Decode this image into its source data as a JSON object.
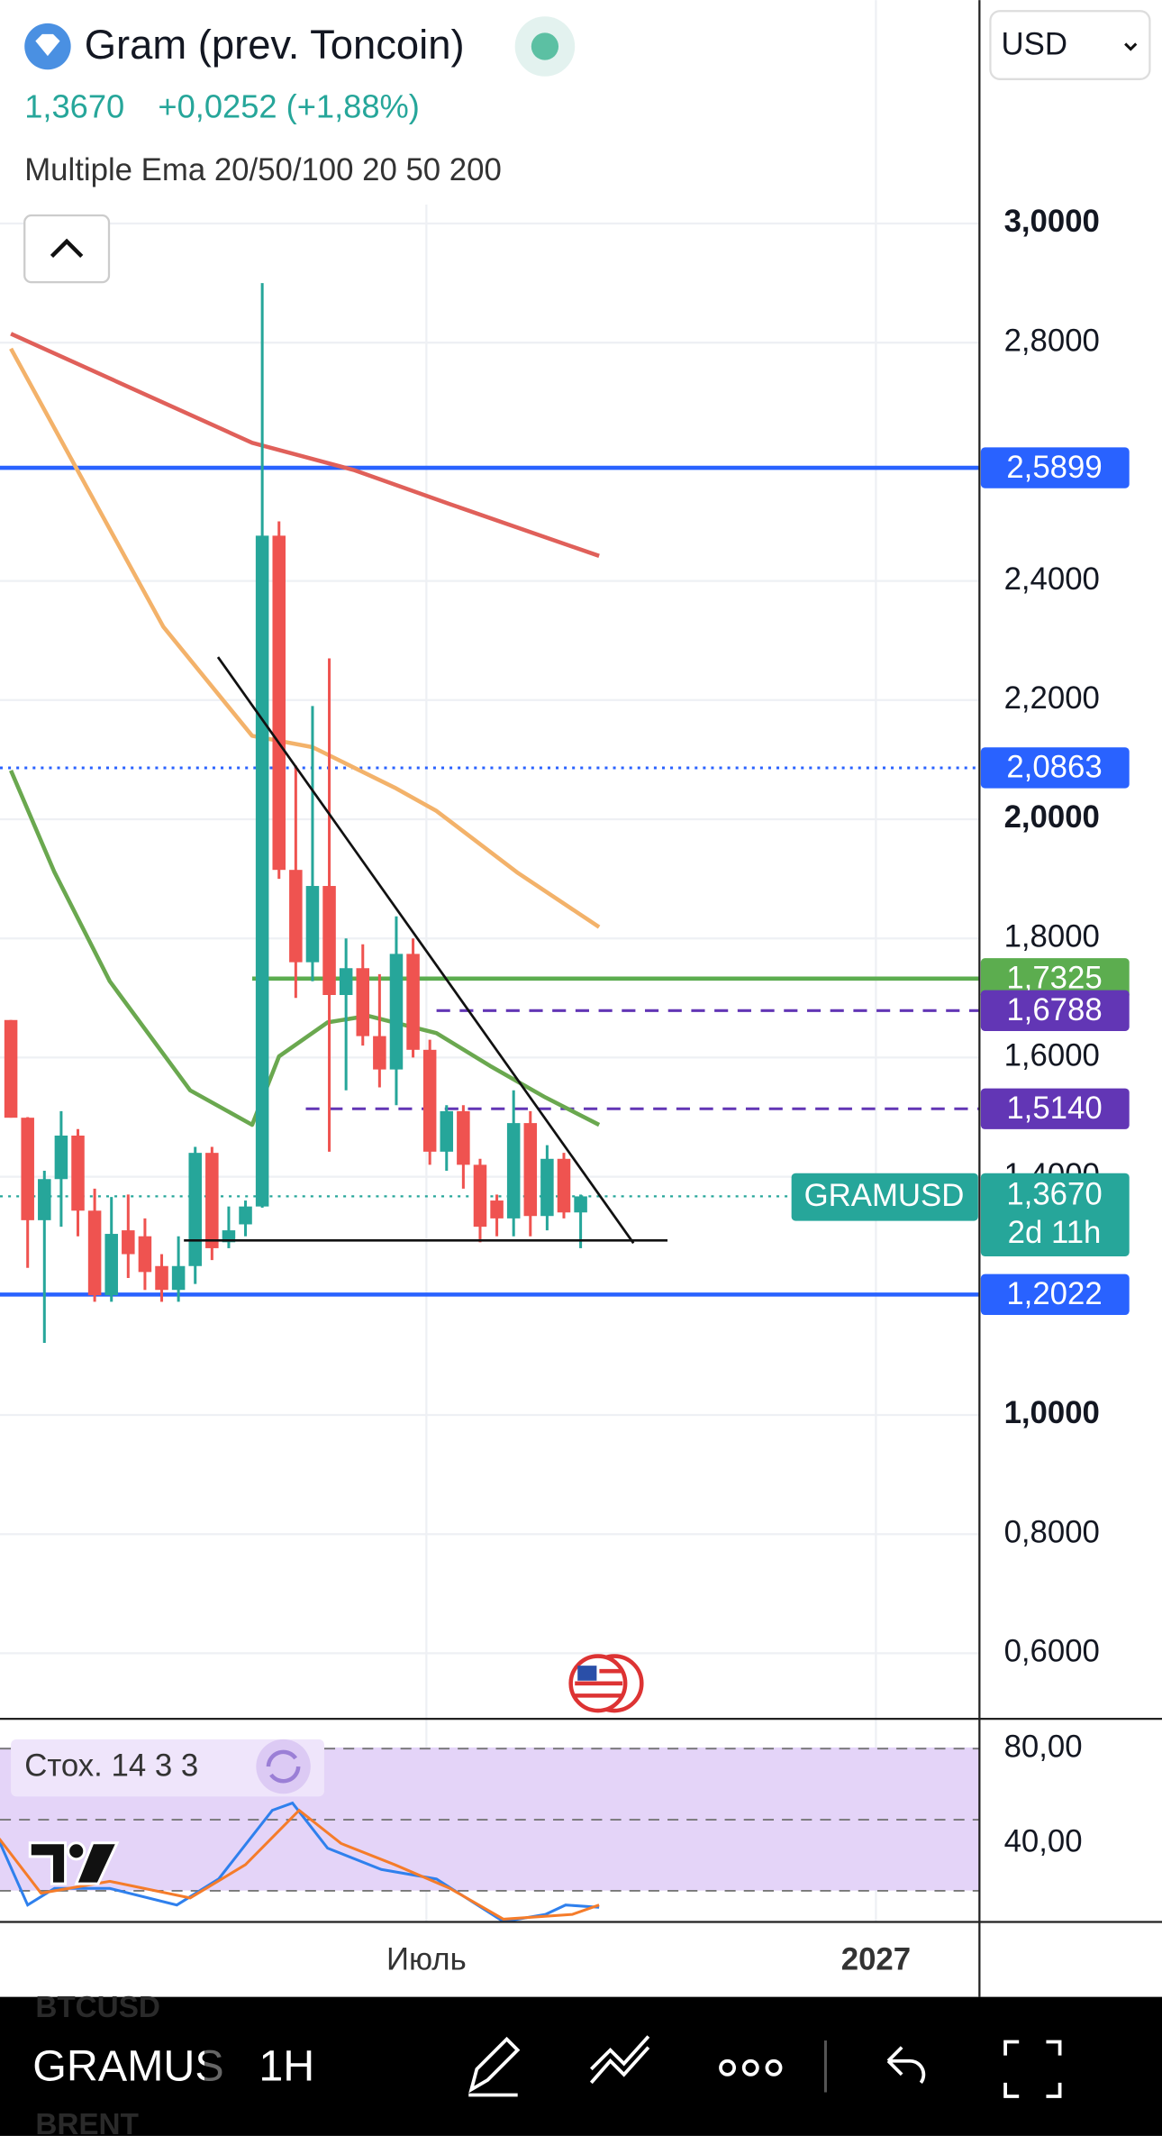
{
  "header": {
    "title": "Gram (prev. Toncoin)",
    "price": "1,3670",
    "change": "+0,0252 (+1,88%)",
    "indicator": "Multiple Ema 20/50/100 20 50 200"
  },
  "currency": "USD",
  "chart_data": {
    "type": "candlestick",
    "up_color": "#26a69a",
    "down_color": "#ef5350",
    "open": [
      1.663,
      1.499,
      1.327,
      1.396,
      1.469,
      1.343,
      1.201,
      1.31,
      1.3,
      1.25,
      1.21,
      1.25,
      1.44,
      1.29,
      1.32,
      1.35,
      2.476,
      1.915,
      1.76,
      1.888,
      1.705,
      1.75,
      1.636,
      1.58,
      1.774,
      1.613,
      1.442,
      1.51,
      1.42,
      1.36,
      1.33,
      1.49,
      1.334,
      1.43,
      1.34
    ],
    "high": [
      1.663,
      1.5,
      1.41,
      1.51,
      1.48,
      1.38,
      1.366,
      1.37,
      1.33,
      1.27,
      1.3,
      1.45,
      1.45,
      1.35,
      1.36,
      2.9,
      2.5,
      2.09,
      2.19,
      2.27,
      1.8,
      1.79,
      1.74,
      1.837,
      1.8,
      1.63,
      1.52,
      1.52,
      1.43,
      1.37,
      1.545,
      1.51,
      1.453,
      1.44,
      1.37
    ],
    "low": [
      1.499,
      1.247,
      1.121,
      1.316,
      1.3,
      1.19,
      1.19,
      1.23,
      1.21,
      1.19,
      1.19,
      1.22,
      1.26,
      1.28,
      1.3,
      1.348,
      1.9,
      1.7,
      1.728,
      1.442,
      1.545,
      1.62,
      1.55,
      1.52,
      1.6,
      1.42,
      1.41,
      1.38,
      1.29,
      1.3,
      1.3,
      1.3,
      1.31,
      1.33,
      1.28
    ],
    "close": [
      1.499,
      1.327,
      1.396,
      1.469,
      1.343,
      1.201,
      1.304,
      1.27,
      1.24,
      1.21,
      1.25,
      1.44,
      1.28,
      1.31,
      1.35,
      2.476,
      1.915,
      1.76,
      1.888,
      1.705,
      1.75,
      1.636,
      1.58,
      1.774,
      1.613,
      1.442,
      1.51,
      1.42,
      1.316,
      1.33,
      1.49,
      1.334,
      1.43,
      1.34,
      1.367
    ],
    "xlim": [
      -0.65,
      57.8
    ],
    "ylim": [
      0.49,
      3.375
    ],
    "yticks": [
      {
        "value": 3,
        "label": "3,0000"
      },
      {
        "value": 2.8,
        "label": "2,8000"
      },
      {
        "value": 2.4,
        "label": "2,4000"
      },
      {
        "value": 2.2,
        "label": "2,2000"
      },
      {
        "value": 2,
        "label": "2,0000"
      },
      {
        "value": 1.8,
        "label": "1,8000"
      },
      {
        "value": 1.6,
        "label": "1,6000"
      },
      {
        "value": 1.4,
        "label": "1,4000"
      },
      {
        "value": 1,
        "label": "1,0000"
      },
      {
        "value": 0.8,
        "label": "0,8000"
      },
      {
        "value": 0.6,
        "label": "0,6000"
      }
    ],
    "grid": true,
    "lines": [
      {
        "color": "#e0605a",
        "x": [
          0,
          14.4,
          20.5,
          26.2,
          35.1
        ],
        "values": [
          2.815,
          2.632,
          2.586,
          2.529,
          2.442
        ]
      },
      {
        "color": "#f3b26a",
        "x": [
          0,
          4.2,
          9.1,
          14.4,
          18,
          22.9,
          25.4,
          30.2,
          35.1
        ],
        "values": [
          2.79,
          2.574,
          2.323,
          2.14,
          2.121,
          2.053,
          2.014,
          1.911,
          1.819
        ]
      },
      {
        "color": "#6aa84f",
        "x": [
          0,
          2.6,
          5.9,
          10.7,
          14.4,
          16,
          18.9,
          21.3,
          25.4,
          28.6,
          31.9,
          35.1
        ],
        "values": [
          2.082,
          1.911,
          1.728,
          1.545,
          1.487,
          1.602,
          1.659,
          1.67,
          1.641,
          1.586,
          1.533,
          1.487
        ]
      }
    ],
    "levels": [
      {
        "value": 2.5899,
        "label": "2,5899",
        "color": "#2962ff",
        "style": "solid"
      },
      {
        "value": 2.0863,
        "label": "2,0863",
        "color": "#2962ff",
        "style": "dotted"
      },
      {
        "value": 1.7325,
        "label": "1,7325",
        "color": "#5cad4f",
        "style": "solid",
        "start": 14.4
      },
      {
        "value": 1.6788,
        "label": "1,6788",
        "color": "#6236b5",
        "style": "dashed",
        "start": 25.4
      },
      {
        "value": 1.514,
        "label": "1,5140",
        "color": "#6236b5",
        "style": "dashed",
        "start": 17.6
      },
      {
        "value": 1.2022,
        "label": "1,2022",
        "color": "#2962ff",
        "style": "solid"
      }
    ],
    "last_price": {
      "value": 1.367,
      "label": "1,3670",
      "countdown": "2d 11h",
      "symbol": "GRAMUSD",
      "color": "#26a69a"
    },
    "x_labels": [
      "Июль",
      "2027"
    ],
    "stochastic": {
      "title": "Стох. 14 3 3",
      "ylim": [
        6.86,
        92
      ],
      "yticks": [
        {
          "value": 80,
          "label": "80,00"
        },
        {
          "value": 40,
          "label": "40,00"
        }
      ],
      "bands": [
        80,
        50,
        20
      ],
      "series": [
        {
          "color": "#2f80ed",
          "x": [
            -0.7,
            1.0,
            2.6,
            5.9,
            9.9,
            12.4,
            15.6,
            16.8,
            18.9,
            22.1,
            25.4,
            29.4,
            31.9,
            33.1,
            35.1
          ],
          "values": [
            41,
            14,
            21,
            21,
            14,
            25,
            54,
            57,
            38,
            29,
            25,
            7,
            10,
            14,
            13
          ]
        },
        {
          "color": "#f57c2a",
          "x": [
            -0.7,
            1.8,
            5.9,
            10.7,
            14.0,
            17.2,
            19.7,
            22.9,
            26.2,
            29.4,
            33.5,
            35.1
          ],
          "values": [
            42,
            19,
            24,
            17,
            31,
            54,
            40,
            31,
            21,
            8,
            10,
            14
          ]
        }
      ]
    }
  },
  "toolbar": {
    "symbol": "GRAMUS",
    "interval": "1H",
    "watchlist": [
      "BTCUSD",
      "BRENT"
    ]
  }
}
